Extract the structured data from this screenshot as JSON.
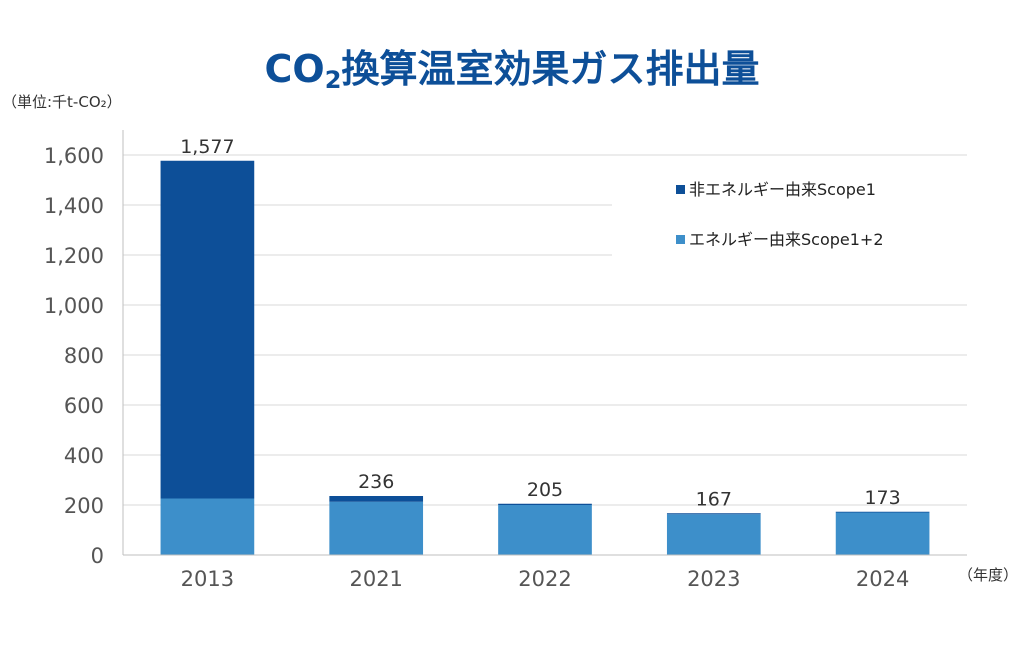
{
  "chart_data": {
    "type": "bar",
    "stacked": true,
    "title": "CO₂換算温室効果ガス排出量",
    "ylabel": "（単位:千t-CO₂）",
    "xlabel": "（年度）",
    "categories": [
      "2013",
      "2021",
      "2022",
      "2023",
      "2024"
    ],
    "series": [
      {
        "name": "エネルギー由来Scope1+2",
        "color": "#3d8fca",
        "values": [
          226,
          213,
          200,
          163,
          170
        ]
      },
      {
        "name": "非エネルギー由来Scope1",
        "color": "#0d4f98",
        "values": [
          1351,
          23,
          5,
          4,
          3
        ]
      }
    ],
    "totals": [
      1577,
      236,
      205,
      167,
      173
    ],
    "total_labels": [
      "1,577",
      "236",
      "205",
      "167",
      "173"
    ],
    "yticks": [
      0,
      200,
      400,
      600,
      800,
      1000,
      1200,
      1400,
      1600
    ],
    "ytick_labels": [
      "0",
      "200",
      "400",
      "600",
      "800",
      "1,000",
      "1,200",
      "1,400",
      "1,600"
    ],
    "ylim": [
      0,
      1600
    ],
    "grid": true,
    "legend_position": "top-right"
  }
}
